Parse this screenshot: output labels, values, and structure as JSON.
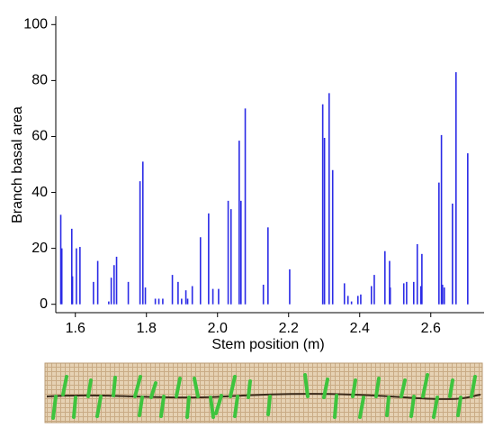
{
  "chart_data": {
    "type": "stem",
    "x_label": "Stem position (m)",
    "y_label": "Branch basal area",
    "color": "#2a2ae6",
    "xlim": [
      1.545,
      2.75
    ],
    "ylim": [
      -3,
      103
    ],
    "xticks": [
      1.6,
      1.8,
      {
        "value": 2,
        "label": "2.0"
      },
      2.2,
      2.4,
      2.6
    ],
    "yticks": [
      0,
      20,
      40,
      60,
      80,
      100
    ],
    "x": [
      1.559,
      1.562,
      1.59,
      1.592,
      1.603,
      1.613,
      1.651,
      1.663,
      1.694,
      1.701,
      1.709,
      1.716,
      1.749,
      1.782,
      1.79,
      1.797,
      1.825,
      1.835,
      1.846,
      1.873,
      1.889,
      1.899,
      1.911,
      1.916,
      1.929,
      1.952,
      1.975,
      1.987,
      2.003,
      2.03,
      2.038,
      2.061,
      2.066,
      2.078,
      2.129,
      2.142,
      2.203,
      2.296,
      2.301,
      2.314,
      2.324,
      2.357,
      2.367,
      2.377,
      2.395,
      2.403,
      2.433,
      2.441,
      2.471,
      2.484,
      2.486,
      2.524,
      2.532,
      2.552,
      2.562,
      2.572,
      2.575,
      2.623,
      2.63,
      2.633,
      2.638,
      2.661,
      2.671,
      2.704
    ],
    "values": [
      32,
      20,
      27,
      10,
      20,
      20.5,
      8,
      15.5,
      1,
      9.5,
      14,
      17,
      8,
      44,
      51,
      6,
      2,
      2,
      2,
      10.5,
      8,
      2,
      5,
      2,
      6.5,
      24,
      32.5,
      5.5,
      5.5,
      37,
      34,
      58.5,
      37,
      70,
      7,
      27.5,
      12.5,
      71.5,
      59.5,
      75.5,
      48,
      7.5,
      3,
      1,
      3,
      3.5,
      6.5,
      10.5,
      19,
      15.5,
      6,
      7.5,
      8,
      8,
      21.5,
      6.5,
      18,
      43.5,
      60.5,
      7,
      6,
      36,
      83,
      54
    ]
  }
}
